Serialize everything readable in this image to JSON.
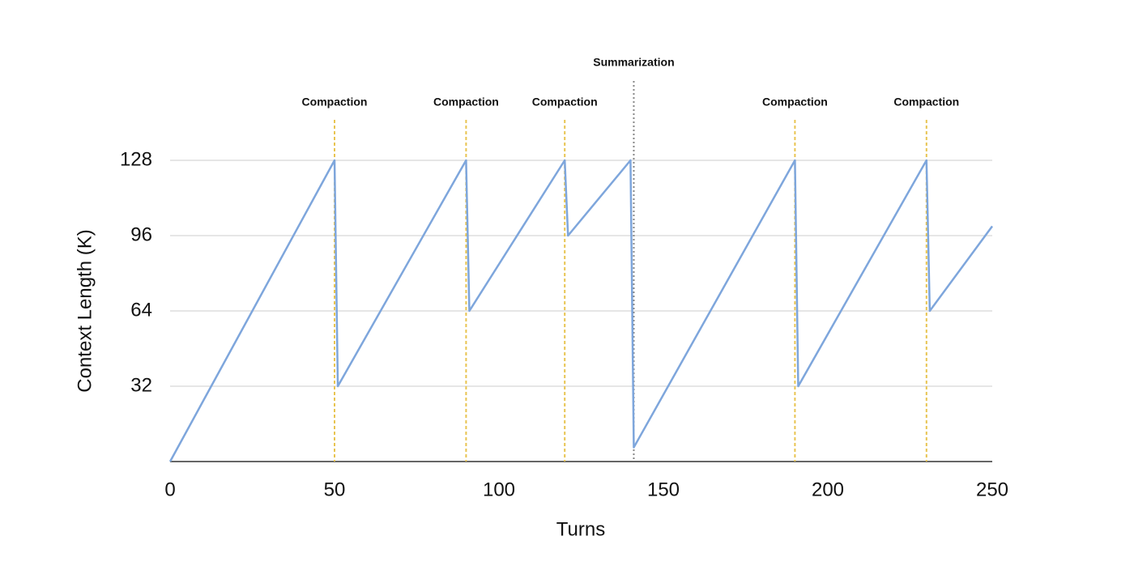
{
  "chart_data": {
    "type": "line",
    "x_label": "Turns",
    "y_label": "Context Length (K)",
    "x": [
      0,
      50,
      51,
      90,
      91,
      120,
      121,
      140,
      141,
      190,
      191,
      230,
      231,
      250
    ],
    "values": [
      0,
      128,
      32,
      128,
      64,
      128,
      96,
      128,
      6,
      128,
      32,
      128,
      64,
      100
    ],
    "color": "#7ea6dc",
    "xlim": [
      0,
      250
    ],
    "xticks": [
      0,
      50,
      100,
      150,
      200,
      250
    ],
    "ylim": [
      0,
      128
    ],
    "yticks": [
      32,
      64,
      96,
      128
    ],
    "grid": true,
    "annotations": [
      {
        "x": 50,
        "label": "Compaction",
        "style": "dashed",
        "color": "#e8c451"
      },
      {
        "x": 90,
        "label": "Compaction",
        "style": "dashed",
        "color": "#e8c451"
      },
      {
        "x": 120,
        "label": "Compaction",
        "style": "dashed",
        "color": "#e8c451"
      },
      {
        "x": 141,
        "label": "Summarization",
        "style": "dotted",
        "color": "#888888"
      },
      {
        "x": 190,
        "label": "Compaction",
        "style": "dashed",
        "color": "#e8c451"
      },
      {
        "x": 230,
        "label": "Compaction",
        "style": "dashed",
        "color": "#e8c451"
      }
    ]
  }
}
